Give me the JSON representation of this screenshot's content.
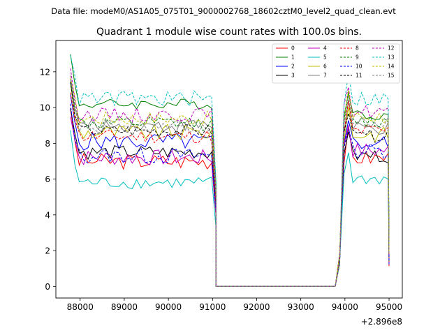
{
  "chart_data": {
    "type": "line",
    "suptitle": "Data file: modeM0/AS1A05_075T01_9000002768_18602cztM0_level2_quad_clean.evt",
    "title": "Quadrant 1 module wise count rates with 100.0s bins.",
    "xlabel": "",
    "ylabel": "",
    "x_offset_label": "+2.896e8",
    "xlim": [
      87450,
      95300
    ],
    "ylim": [
      -0.65,
      13.75
    ],
    "xticks": [
      88000,
      89000,
      90000,
      91000,
      92000,
      93000,
      94000,
      95000
    ],
    "yticks": [
      0,
      2,
      4,
      6,
      8,
      10,
      12
    ],
    "legend_position": "top-right",
    "active_segments": [
      {
        "start": 87780,
        "end": 91080,
        "bins": 34
      },
      {
        "start": 93780,
        "end": 94980,
        "bins": 13
      }
    ],
    "gap_level": 0,
    "series": [
      {
        "name": "0",
        "color": "#ff0000",
        "dash": "solid",
        "base1": 7.0,
        "base2": 7.2,
        "amp": 0.45
      },
      {
        "name": "1",
        "color": "#008000",
        "dash": "solid",
        "base1": 10.2,
        "base2": 9.6,
        "amp": 0.3
      },
      {
        "name": "2",
        "color": "#0000ff",
        "dash": "solid",
        "base1": 8.1,
        "base2": 8.0,
        "amp": 0.5
      },
      {
        "name": "3",
        "color": "#000000",
        "dash": "solid",
        "base1": 7.5,
        "base2": 7.3,
        "amp": 0.4
      },
      {
        "name": "4",
        "color": "#bf00bf",
        "dash": "solid",
        "base1": 7.2,
        "base2": 7.6,
        "amp": 0.45
      },
      {
        "name": "5",
        "color": "#00bfbf",
        "dash": "solid",
        "base1": 5.8,
        "base2": 6.0,
        "amp": 0.35
      },
      {
        "name": "6",
        "color": "#bfbf00",
        "dash": "solid",
        "base1": 8.6,
        "base2": 8.5,
        "amp": 0.45
      },
      {
        "name": "7",
        "color": "#808080",
        "dash": "solid",
        "base1": 9.0,
        "base2": 8.8,
        "amp": 0.4
      },
      {
        "name": "8",
        "color": "#ff0000",
        "dash": "dashed",
        "base1": 8.4,
        "base2": 8.7,
        "amp": 0.4
      },
      {
        "name": "9",
        "color": "#008000",
        "dash": "dashed",
        "base1": 9.1,
        "base2": 9.2,
        "amp": 0.4
      },
      {
        "name": "10",
        "color": "#0000ff",
        "dash": "dashed",
        "base1": 7.3,
        "base2": 7.6,
        "amp": 0.45
      },
      {
        "name": "11",
        "color": "#000000",
        "dash": "dashed",
        "base1": 8.7,
        "base2": 8.4,
        "amp": 0.35
      },
      {
        "name": "12",
        "color": "#bf00bf",
        "dash": "dashed",
        "base1": 9.6,
        "base2": 9.8,
        "amp": 0.4
      },
      {
        "name": "13",
        "color": "#00bfbf",
        "dash": "dashed",
        "base1": 10.5,
        "base2": 10.5,
        "amp": 0.45
      },
      {
        "name": "14",
        "color": "#bfbf00",
        "dash": "dashed",
        "base1": 9.4,
        "base2": 9.5,
        "amp": 0.4
      },
      {
        "name": "15",
        "color": "#808080",
        "dash": "dashed",
        "base1": 8.9,
        "base2": 9.1,
        "amp": 0.4
      }
    ]
  }
}
